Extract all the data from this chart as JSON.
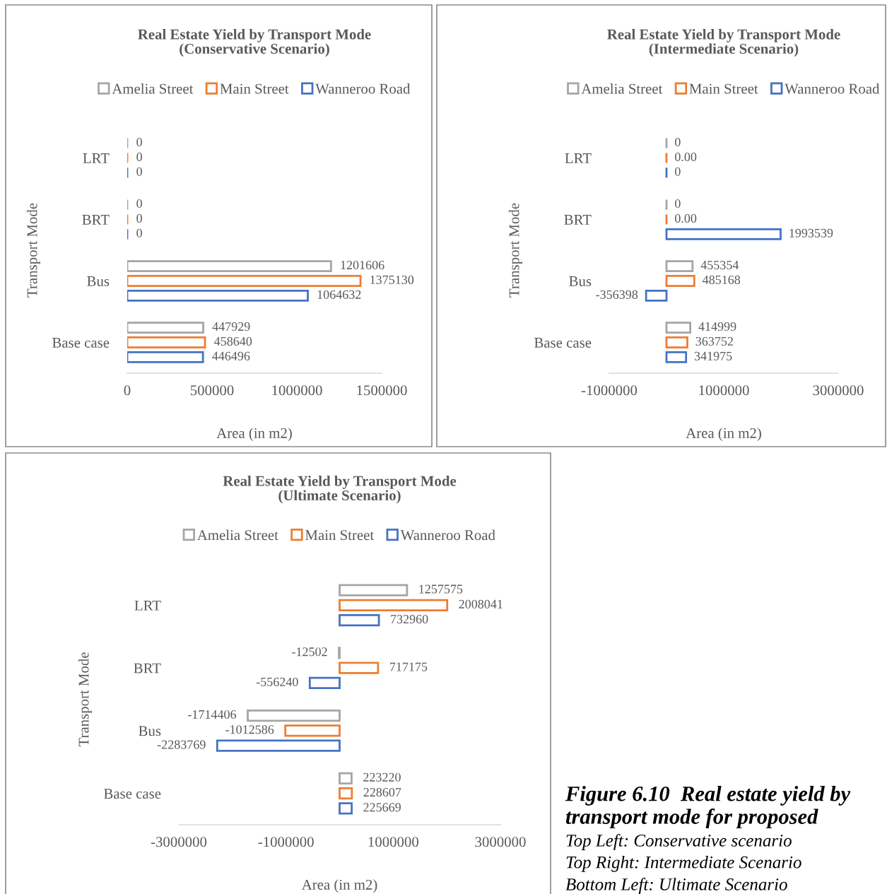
{
  "chart_data": [
    {
      "type": "bar",
      "orientation": "horizontal",
      "title": "Real Estate Yield by Transport Mode\n(Conservative Scenario)",
      "xlabel": "Area (in m2)",
      "ylabel": "Transport Mode",
      "categories": [
        "LRT",
        "BRT",
        "Bus",
        "Base case"
      ],
      "legend": "top",
      "data_labels": true,
      "xlim": [
        0,
        1500000
      ],
      "xticks": [
        0,
        500000,
        1000000,
        1500000
      ],
      "series": [
        {
          "name": "Amelia Street",
          "color": "#a5a5a5",
          "values": [
            0,
            0,
            1201606,
            447929
          ]
        },
        {
          "name": "Main Street",
          "color": "#ed7d31",
          "values": [
            0,
            0,
            1375130,
            458640
          ]
        },
        {
          "name": "Wanneroo Road",
          "color": "#4472c4",
          "values": [
            0,
            0,
            1064632,
            446496
          ]
        }
      ]
    },
    {
      "type": "bar",
      "orientation": "horizontal",
      "title": "Real Estate Yield by Transport Mode\n(Intermediate Scenario)",
      "xlabel": "Area (in m2)",
      "ylabel": "Transport Mode",
      "categories": [
        "LRT",
        "BRT",
        "Bus",
        "Base case"
      ],
      "legend": "top",
      "xlim": [
        -1000000,
        3000000
      ],
      "xticks": [
        -1000000,
        1000000,
        3000000
      ],
      "series": [
        {
          "name": "Amelia Street",
          "color": "#a5a5a5",
          "values": [
            0,
            0,
            455354,
            414999
          ],
          "value_labels": [
            "0",
            "0",
            "455354",
            "414999"
          ]
        },
        {
          "name": "Main Street",
          "color": "#ed7d31",
          "values": [
            0,
            0,
            485168,
            363752
          ],
          "value_labels": [
            "0.00",
            "0.00",
            "485168",
            "363752"
          ]
        },
        {
          "name": "Wanneroo Road",
          "color": "#4472c4",
          "values": [
            0,
            1993539,
            -356398,
            341975
          ],
          "value_labels": [
            "0",
            "1993539",
            "-356398",
            "341975"
          ]
        }
      ]
    },
    {
      "type": "bar",
      "orientation": "horizontal",
      "title": "Real Estate Yield by Transport Mode\n(Ultimate Scenario)",
      "xlabel": "Area (in m2)",
      "ylabel": "Transport Mode",
      "categories": [
        "LRT",
        "BRT",
        "Bus",
        "Base case"
      ],
      "legend": "top",
      "data_labels": true,
      "xlim": [
        -3000000,
        3000000
      ],
      "xticks": [
        -3000000,
        -1000000,
        1000000,
        3000000
      ],
      "series": [
        {
          "name": "Amelia Street",
          "color": "#a5a5a5",
          "values": [
            1257575,
            -12502,
            -1714406,
            223220
          ]
        },
        {
          "name": "Main Street",
          "color": "#ed7d31",
          "values": [
            2008041,
            717175,
            -1012586,
            228607
          ]
        },
        {
          "name": "Wanneroo Road",
          "color": "#4472c4",
          "values": [
            732960,
            -556240,
            -2283769,
            225669
          ]
        }
      ],
      "annotations": [
        "Figure 6.10  Real estate yield by transport mode for proposed",
        "Top Left: Conservative scenario",
        "Top Right: Intermediate Scenario",
        "Bottom Left: Ultimate Scenario"
      ]
    }
  ]
}
